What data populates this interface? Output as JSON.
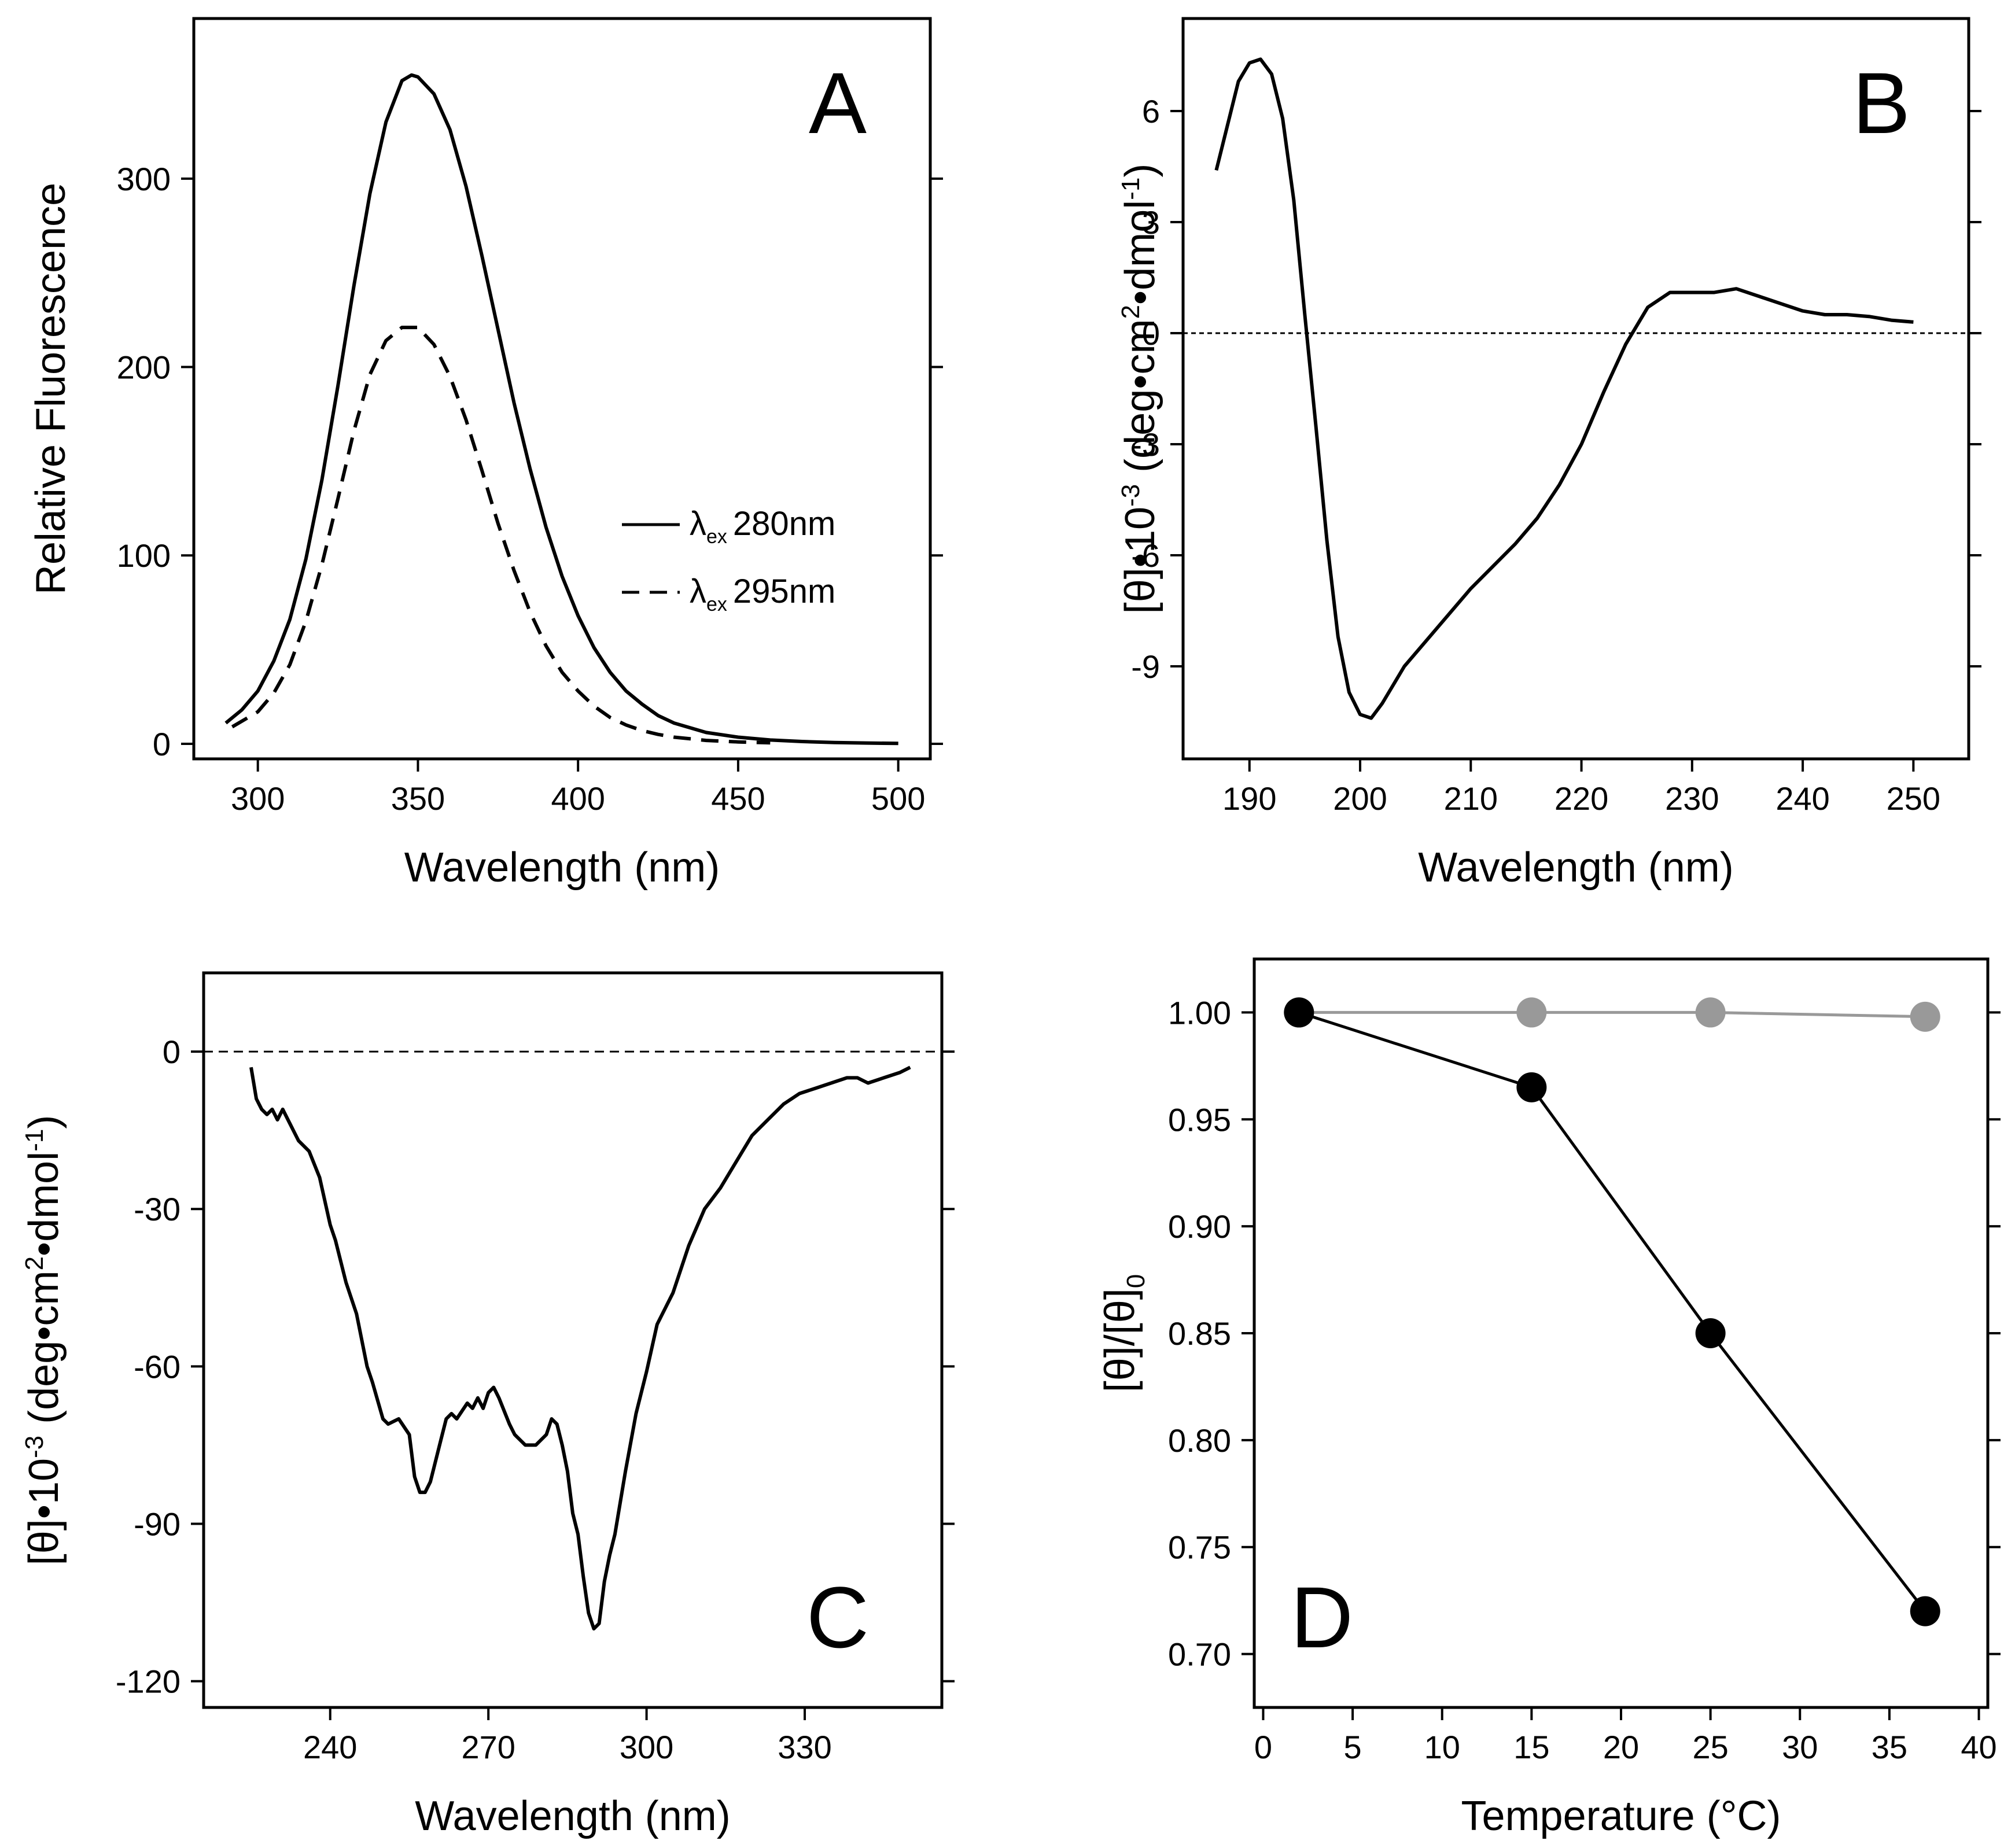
{
  "chart_data": [
    {
      "panel": "A",
      "type": "line",
      "ylabel": "Relative Fluorescence",
      "xlabel": "Wavelength (nm)",
      "xlim": [
        280,
        510
      ],
      "ylim": [
        -8,
        385
      ],
      "xticks": [
        300,
        350,
        400,
        450,
        500
      ],
      "yticks": [
        0,
        100,
        200,
        300
      ],
      "legend": {
        "position": "right-middle"
      },
      "series": [
        {
          "name": "λex 280nm",
          "legend_symbol": "λ",
          "legend_sub": "ex",
          "legend_rest": "280nm",
          "style": "solid",
          "color": "#000000",
          "x": [
            290,
            295,
            300,
            305,
            310,
            315,
            320,
            325,
            330,
            335,
            340,
            345,
            348,
            350,
            355,
            360,
            365,
            370,
            375,
            380,
            385,
            390,
            395,
            400,
            405,
            410,
            415,
            420,
            425,
            430,
            440,
            450,
            460,
            470,
            480,
            490,
            500
          ],
          "values": [
            11,
            18,
            28,
            44,
            66,
            98,
            140,
            190,
            243,
            292,
            330,
            352,
            355,
            354,
            345,
            326,
            296,
            259,
            220,
            181,
            146,
            115,
            89,
            68,
            51,
            38,
            28,
            21,
            15,
            11,
            6,
            3.5,
            2,
            1.2,
            0.7,
            0.4,
            0.2
          ]
        },
        {
          "name": "λex 295nm",
          "legend_symbol": "λ",
          "legend_sub": "ex",
          "legend_rest": "295nm",
          "style": "dashed",
          "color": "#000000",
          "x": [
            292,
            295,
            300,
            305,
            310,
            315,
            320,
            325,
            330,
            335,
            340,
            345,
            350,
            355,
            360,
            365,
            370,
            375,
            380,
            385,
            390,
            395,
            400,
            405,
            410,
            415,
            420,
            425,
            430,
            440,
            450,
            460
          ],
          "values": [
            9,
            12,
            17,
            27,
            42,
            65,
            95,
            130,
            166,
            196,
            214,
            221,
            221,
            212,
            195,
            172,
            145,
            117,
            92,
            70,
            52,
            38,
            28,
            20,
            14,
            10,
            7,
            5,
            3.5,
            1.8,
            1,
            0.5
          ]
        }
      ]
    },
    {
      "panel": "B",
      "type": "line",
      "ylabel_parts": {
        "a": "[θ]•10",
        "a_sup": "-3",
        "b": " (deg•cm",
        "b_sup": "2",
        "c": "•dmol",
        "c_sup": "-1",
        "d": ")"
      },
      "xlabel": "Wavelength (nm)",
      "xlim": [
        184,
        255
      ],
      "ylim": [
        -11.5,
        8.5
      ],
      "xticks": [
        190,
        200,
        210,
        220,
        230,
        240,
        250
      ],
      "yticks": [
        6,
        3,
        0,
        -3,
        -6,
        -9
      ],
      "reference_line": {
        "y": 0,
        "style": "dotted"
      },
      "series": [
        {
          "style": "solid",
          "color": "#000000",
          "x": [
            187,
            188,
            189,
            190,
            191,
            192,
            193,
            194,
            195,
            196,
            197,
            198,
            199,
            200,
            201,
            202,
            203,
            204,
            206,
            208,
            210,
            212,
            214,
            216,
            218,
            220,
            222,
            224,
            226,
            228,
            230,
            232,
            234,
            236,
            238,
            240,
            242,
            244,
            246,
            248,
            250
          ],
          "values": [
            4.4,
            5.6,
            6.8,
            7.3,
            7.4,
            7.0,
            5.8,
            3.6,
            0.5,
            -2.5,
            -5.6,
            -8.2,
            -9.7,
            -10.3,
            -10.4,
            -10.0,
            -9.5,
            -9.0,
            -8.3,
            -7.6,
            -6.9,
            -6.3,
            -5.7,
            -5.0,
            -4.1,
            -3.0,
            -1.6,
            -0.3,
            0.7,
            1.1,
            1.1,
            1.1,
            1.2,
            1.0,
            0.8,
            0.6,
            0.5,
            0.5,
            0.45,
            0.35,
            0.3
          ]
        }
      ]
    },
    {
      "panel": "C",
      "type": "line",
      "ylabel_parts": {
        "a": "[θ]•10",
        "a_sup": "-3",
        "b": " (deg•cm",
        "b_sup": "2",
        "c": "•dmol",
        "c_sup": "-1",
        "d": ")"
      },
      "xlabel": "Wavelength (nm)",
      "xlim": [
        216,
        356
      ],
      "ylim": [
        -125,
        15
      ],
      "xticks": [
        240,
        270,
        300,
        330
      ],
      "yticks": [
        0,
        -30,
        -60,
        -90,
        -120
      ],
      "reference_line": {
        "y": 0,
        "style": "dashed"
      },
      "series": [
        {
          "style": "solid",
          "color": "#000000",
          "x": [
            225,
            226,
            227,
            228,
            229,
            230,
            231,
            232,
            234,
            236,
            238,
            240,
            241,
            243,
            245,
            247,
            248,
            250,
            251,
            253,
            255,
            256,
            257,
            258,
            259,
            261,
            262,
            263,
            264,
            266,
            267,
            268,
            269,
            270,
            271,
            272,
            274,
            275,
            277,
            279,
            281,
            282,
            283,
            284,
            285,
            286,
            287,
            288,
            289,
            290,
            291,
            292,
            293,
            294,
            296,
            298,
            300,
            302,
            305,
            308,
            311,
            314,
            317,
            320,
            323,
            326,
            329,
            332,
            335,
            338,
            340,
            342,
            345,
            348,
            350
          ],
          "values": [
            -3,
            -9,
            -11,
            -12,
            -11,
            -13,
            -11,
            -13,
            -17,
            -19,
            -24,
            -33,
            -36,
            -44,
            -50,
            -60,
            -63,
            -70,
            -71,
            -70,
            -73,
            -81,
            -84,
            -84,
            -82,
            -74,
            -70,
            -69,
            -70,
            -67,
            -68,
            -66,
            -68,
            -65,
            -64,
            -66,
            -71,
            -73,
            -75,
            -75,
            -73,
            -70,
            -71,
            -75,
            -80,
            -88,
            -92,
            -100,
            -107,
            -110,
            -109,
            -101,
            -96,
            -92,
            -80,
            -69,
            -61,
            -52,
            -46,
            -37,
            -30,
            -26,
            -21,
            -16,
            -13,
            -10,
            -8,
            -7,
            -6,
            -5,
            -5,
            -6,
            -5,
            -4,
            -3
          ]
        }
      ]
    },
    {
      "panel": "D",
      "type": "scatter",
      "ylabel_parts": {
        "a": "[θ]/[θ]",
        "a_sub": "0"
      },
      "xlabel": "Temperature (°C)",
      "xlim": [
        -0.5,
        40.5
      ],
      "ylim": [
        0.675,
        1.025
      ],
      "xticks": [
        0,
        5,
        10,
        15,
        20,
        25,
        30,
        35,
        40
      ],
      "yticks": [
        1.0,
        0.95,
        0.9,
        0.85,
        0.8,
        0.75,
        0.7
      ],
      "ytick_labels": [
        "1.00",
        "0.95",
        "0.90",
        "0.85",
        "0.80",
        "0.75",
        "0.70"
      ],
      "series": [
        {
          "color": "#999999",
          "markers": true,
          "connected": true,
          "x": [
            2,
            15,
            25,
            37
          ],
          "values": [
            1.0,
            1.0,
            1.0,
            0.998
          ]
        },
        {
          "color": "#000000",
          "markers": true,
          "connected": true,
          "x": [
            2,
            15,
            25,
            37
          ],
          "values": [
            1.0,
            0.965,
            0.85,
            0.72
          ]
        }
      ]
    }
  ],
  "panel_letters": [
    "A",
    "B",
    "C",
    "D"
  ]
}
